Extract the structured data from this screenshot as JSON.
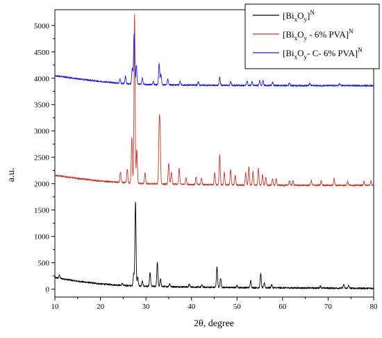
{
  "chart_data": {
    "type": "line",
    "xlabel": "2θ, degree",
    "ylabel": "a.u.",
    "xlim": [
      10,
      80
    ],
    "ylim": [
      -150,
      5300
    ],
    "x_ticks": [
      10,
      20,
      30,
      40,
      50,
      60,
      70,
      80
    ],
    "y_ticks": [
      0,
      500,
      1000,
      1500,
      2000,
      2500,
      3000,
      3500,
      4000,
      4500,
      5000
    ],
    "grid": false,
    "legend_position": "top-right",
    "series": [
      {
        "name": "[BixOy]N",
        "legend": {
          "main": "[Bi",
          "sub1": "x",
          "mid": "O",
          "sub2": "y",
          "tail": "]",
          "sup": "N"
        },
        "color": "#000000",
        "baseline": [
          [
            10,
            220
          ],
          [
            15,
            150
          ],
          [
            20,
            100
          ],
          [
            25,
            70
          ],
          [
            30,
            55
          ],
          [
            40,
            40
          ],
          [
            50,
            30
          ],
          [
            60,
            25
          ],
          [
            70,
            20
          ],
          [
            80,
            15
          ]
        ],
        "peaks": [
          [
            11.0,
            60
          ],
          [
            24.8,
            40
          ],
          [
            27.3,
            230
          ],
          [
            27.7,
            1600
          ],
          [
            28.2,
            170
          ],
          [
            29.2,
            90
          ],
          [
            30.9,
            260
          ],
          [
            32.5,
            460
          ],
          [
            33.2,
            140
          ],
          [
            35.2,
            60
          ],
          [
            39.5,
            50
          ],
          [
            42.3,
            40
          ],
          [
            45.6,
            390
          ],
          [
            46.4,
            180
          ],
          [
            50.0,
            40
          ],
          [
            53.0,
            130
          ],
          [
            55.2,
            270
          ],
          [
            56.0,
            90
          ],
          [
            57.6,
            60
          ],
          [
            68.3,
            40
          ],
          [
            73.4,
            70
          ],
          [
            74.5,
            50
          ]
        ]
      },
      {
        "name": "[BixOy - 6% PVA]N",
        "legend": {
          "main": "[Bi",
          "sub1": "x",
          "mid": "O",
          "sub2": "y",
          "tail": " - 6% PVA]",
          "sup": "N"
        },
        "color": "#c0392b",
        "baseline": [
          [
            10,
            2160
          ],
          [
            15,
            2100
          ],
          [
            20,
            2050
          ],
          [
            25,
            2020
          ],
          [
            30,
            2000
          ],
          [
            40,
            1985
          ],
          [
            50,
            1975
          ],
          [
            60,
            1970
          ],
          [
            70,
            1970
          ],
          [
            80,
            1970
          ]
        ],
        "peaks": [
          [
            24.4,
            200
          ],
          [
            25.9,
            260
          ],
          [
            26.9,
            870
          ],
          [
            27.5,
            3200
          ],
          [
            28.0,
            640
          ],
          [
            29.8,
            200
          ],
          [
            32.9,
            950
          ],
          [
            33.1,
            900
          ],
          [
            35.0,
            400
          ],
          [
            35.6,
            230
          ],
          [
            37.3,
            300
          ],
          [
            38.8,
            130
          ],
          [
            41.0,
            140
          ],
          [
            42.2,
            120
          ],
          [
            45.1,
            220
          ],
          [
            46.2,
            570
          ],
          [
            47.2,
            240
          ],
          [
            48.6,
            300
          ],
          [
            49.6,
            180
          ],
          [
            51.9,
            240
          ],
          [
            52.6,
            340
          ],
          [
            53.5,
            250
          ],
          [
            54.7,
            320
          ],
          [
            55.6,
            200
          ],
          [
            56.3,
            150
          ],
          [
            57.8,
            130
          ],
          [
            58.6,
            120
          ],
          [
            61.5,
            90
          ],
          [
            62.3,
            80
          ],
          [
            66.3,
            90
          ],
          [
            68.5,
            90
          ],
          [
            71.3,
            130
          ],
          [
            74.3,
            80
          ],
          [
            77.9,
            70
          ],
          [
            79.4,
            80
          ]
        ]
      },
      {
        "name": "[BixOy- C- 6% PVA]N",
        "legend": {
          "main": "[Bi",
          "sub1": "x",
          "mid": "O",
          "sub2": "y",
          "tail": "- C- 6% PVA]",
          "sup": "N"
        },
        "color": "#1f1fd6",
        "baseline": [
          [
            10,
            4050
          ],
          [
            15,
            3990
          ],
          [
            20,
            3940
          ],
          [
            25,
            3900
          ],
          [
            30,
            3880
          ],
          [
            40,
            3870
          ],
          [
            50,
            3865
          ],
          [
            60,
            3862
          ],
          [
            70,
            3860
          ],
          [
            80,
            3860
          ]
        ],
        "peaks": [
          [
            24.3,
            80
          ],
          [
            25.5,
            140
          ],
          [
            27.0,
            300
          ],
          [
            27.4,
            960
          ],
          [
            27.9,
            350
          ],
          [
            29.2,
            120
          ],
          [
            31.6,
            60
          ],
          [
            32.9,
            400
          ],
          [
            33.3,
            200
          ],
          [
            34.8,
            110
          ],
          [
            37.5,
            80
          ],
          [
            41.5,
            60
          ],
          [
            46.2,
            150
          ],
          [
            48.6,
            70
          ],
          [
            52.2,
            80
          ],
          [
            53.3,
            70
          ],
          [
            55.0,
            100
          ],
          [
            55.7,
            90
          ],
          [
            57.8,
            60
          ],
          [
            61.5,
            50
          ],
          [
            66.0,
            40
          ],
          [
            72.5,
            40
          ]
        ]
      }
    ]
  }
}
